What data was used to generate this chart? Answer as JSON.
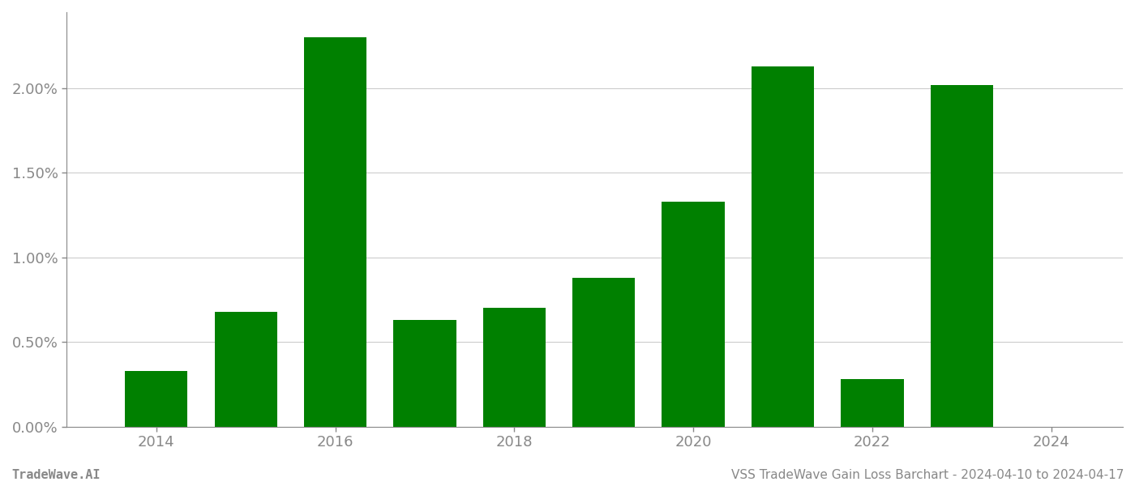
{
  "years": [
    2014,
    2015,
    2016,
    2017,
    2018,
    2019,
    2020,
    2021,
    2022,
    2023
  ],
  "values": [
    0.0033,
    0.0068,
    0.023,
    0.0063,
    0.007,
    0.0088,
    0.0133,
    0.0213,
    0.0028,
    0.0202
  ],
  "bar_color": "#008000",
  "background_color": "#ffffff",
  "grid_color": "#cccccc",
  "axis_color": "#888888",
  "tick_label_color": "#888888",
  "footer_left": "TradeWave.AI",
  "footer_right": "VSS TradeWave Gain Loss Barchart - 2024-04-10 to 2024-04-17",
  "footer_fontsize": 11,
  "ylim": [
    0,
    0.0245
  ],
  "ytick_values": [
    0.0,
    0.005,
    0.01,
    0.015,
    0.02
  ],
  "ytick_labels": [
    "0.00%",
    "0.50%",
    "1.00%",
    "1.50%",
    "2.00%"
  ],
  "xtick_labels": [
    2014,
    2016,
    2018,
    2020,
    2022,
    2024
  ],
  "bar_width": 0.7
}
